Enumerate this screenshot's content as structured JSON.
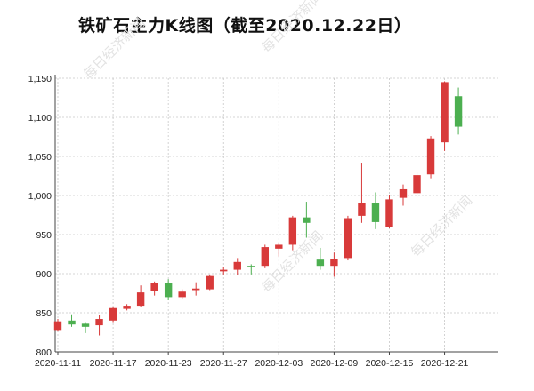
{
  "title": "铁矿石主力K线图（截至2020.12.22日）",
  "watermark": "每日经济新闻",
  "colors": {
    "up": "#d83a3a",
    "down": "#4caf50",
    "grid": "#c8c8c8",
    "axis": "#444444"
  },
  "chart_data": {
    "type": "candlestick",
    "title": "铁矿石主力K线图（截至2020.12.22日）",
    "ylim": [
      800,
      1150
    ],
    "y_ticks": [
      "800",
      "850",
      "900",
      "950",
      "1,000",
      "1,050",
      "1,100",
      "1,150"
    ],
    "x_tick_labels": [
      "2020-11-11",
      "2020-11-17",
      "2020-11-23",
      "2020-11-27",
      "2020-12-03",
      "2020-12-09",
      "2020-12-15",
      "2020-12-21"
    ],
    "grid": true,
    "candles": [
      {
        "open": 828,
        "close": 839,
        "high": 842,
        "low": 826
      },
      {
        "open": 840,
        "close": 835,
        "high": 848,
        "low": 832
      },
      {
        "open": 836,
        "close": 832,
        "high": 838,
        "low": 824
      },
      {
        "open": 834,
        "close": 842,
        "high": 847,
        "low": 821
      },
      {
        "open": 840,
        "close": 856,
        "high": 858,
        "low": 838
      },
      {
        "open": 855,
        "close": 859,
        "high": 861,
        "low": 853
      },
      {
        "open": 859,
        "close": 876,
        "high": 885,
        "low": 858
      },
      {
        "open": 878,
        "close": 888,
        "high": 890,
        "low": 872
      },
      {
        "open": 888,
        "close": 870,
        "high": 893,
        "low": 866
      },
      {
        "open": 870,
        "close": 877,
        "high": 880,
        "low": 868
      },
      {
        "open": 879,
        "close": 881,
        "high": 889,
        "low": 872
      },
      {
        "open": 880,
        "close": 897,
        "high": 899,
        "low": 879
      },
      {
        "open": 903,
        "close": 905,
        "high": 909,
        "low": 899
      },
      {
        "open": 905,
        "close": 915,
        "high": 920,
        "low": 898
      },
      {
        "open": 910,
        "close": 908,
        "high": 912,
        "low": 899
      },
      {
        "open": 910,
        "close": 934,
        "high": 937,
        "low": 907
      },
      {
        "open": 932,
        "close": 937,
        "high": 940,
        "low": 922
      },
      {
        "open": 937,
        "close": 972,
        "high": 974,
        "low": 930
      },
      {
        "open": 972,
        "close": 965,
        "high": 992,
        "low": 946
      },
      {
        "open": 918,
        "close": 910,
        "high": 933,
        "low": 905
      },
      {
        "open": 910,
        "close": 919,
        "high": 927,
        "low": 896
      },
      {
        "open": 920,
        "close": 971,
        "high": 974,
        "low": 917
      },
      {
        "open": 974,
        "close": 990,
        "high": 1042,
        "low": 965
      },
      {
        "open": 990,
        "close": 966,
        "high": 1004,
        "low": 957
      },
      {
        "open": 960,
        "close": 995,
        "high": 1000,
        "low": 958
      },
      {
        "open": 997,
        "close": 1008,
        "high": 1014,
        "low": 987
      },
      {
        "open": 1003,
        "close": 1026,
        "high": 1030,
        "low": 997
      },
      {
        "open": 1027,
        "close": 1073,
        "high": 1076,
        "low": 1022
      },
      {
        "open": 1068,
        "close": 1145,
        "high": 1146,
        "low": 1057
      },
      {
        "open": 1127,
        "close": 1088,
        "high": 1138,
        "low": 1078
      }
    ]
  }
}
